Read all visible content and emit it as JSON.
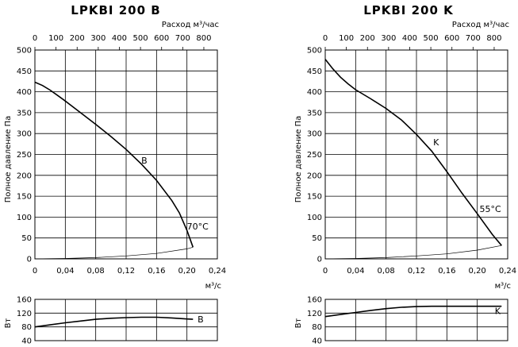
{
  "chart_data": [
    {
      "type": "line",
      "title": "LPKBI 200 B",
      "x_label": "м³/с",
      "x_ticks": [
        "0",
        "0,04",
        "0,08",
        "0,12",
        "0,16",
        "0,20",
        "0,24"
      ],
      "xlim": [
        0,
        0.24
      ],
      "top_label": "Расход м³/час",
      "top_ticks": [
        "0",
        "100",
        "200",
        "300",
        "400",
        "500",
        "600",
        "700",
        "800"
      ],
      "top_lim": [
        0,
        864
      ],
      "y_label": "Полное давление Па",
      "y_ticks": [
        "0",
        "50",
        "100",
        "150",
        "200",
        "250",
        "300",
        "350",
        "400",
        "450",
        "500"
      ],
      "ylim": [
        0,
        500
      ],
      "grid": true,
      "series": [
        {
          "name": "B",
          "x": [
            0,
            0.01,
            0.02,
            0.03,
            0.04,
            0.06,
            0.08,
            0.1,
            0.12,
            0.14,
            0.16,
            0.18,
            0.19,
            0.2,
            0.208
          ],
          "y": [
            423,
            415,
            404,
            391,
            378,
            350,
            322,
            293,
            262,
            227,
            188,
            140,
            110,
            68,
            28
          ]
        },
        {
          "name": "",
          "x": [
            0,
            0.04,
            0.08,
            0.12,
            0.16,
            0.2,
            0.208
          ],
          "y": [
            0,
            1,
            3,
            7,
            13,
            24,
            28
          ]
        }
      ],
      "annotations": [
        {
          "text": "B",
          "x": 0.14,
          "y": 228
        },
        {
          "text": "70°C",
          "x": 0.2,
          "y": 70
        }
      ],
      "power_chart": {
        "y_label": "Вт",
        "y_ticks": [
          "40",
          "80",
          "120",
          "160"
        ],
        "ylim": [
          40,
          160
        ],
        "series": [
          {
            "name": "B",
            "x": [
              0,
              0.02,
              0.04,
              0.06,
              0.08,
              0.1,
              0.12,
              0.14,
              0.16,
              0.18,
              0.2,
              0.208
            ],
            "y": [
              80,
              86,
              92,
              97,
              102,
              105,
              107,
              108,
              108,
              106,
              103,
              102
            ]
          }
        ],
        "annotations": [
          {
            "text": "B",
            "x": 0.214,
            "y": 102
          }
        ]
      }
    },
    {
      "type": "line",
      "title": "LPKBI 200 K",
      "x_label": "м³/с",
      "x_ticks": [
        "0",
        "0,04",
        "0,08",
        "0,12",
        "0,16",
        "0,20",
        "0,24"
      ],
      "xlim": [
        0,
        0.24
      ],
      "top_label": "Расход м³/час",
      "top_ticks": [
        "0",
        "100",
        "200",
        "300",
        "400",
        "500",
        "600",
        "700",
        "800"
      ],
      "top_lim": [
        0,
        864
      ],
      "y_label": "Полное давление Па",
      "y_ticks": [
        "0",
        "50",
        "100",
        "150",
        "200",
        "250",
        "300",
        "350",
        "400",
        "450",
        "500"
      ],
      "ylim": [
        0,
        500
      ],
      "grid": true,
      "series": [
        {
          "name": "K",
          "x": [
            0,
            0.01,
            0.02,
            0.03,
            0.04,
            0.06,
            0.08,
            0.1,
            0.12,
            0.14,
            0.16,
            0.18,
            0.2,
            0.22,
            0.232
          ],
          "y": [
            478,
            455,
            435,
            419,
            405,
            383,
            360,
            333,
            298,
            258,
            209,
            157,
            108,
            58,
            32
          ]
        },
        {
          "name": "",
          "x": [
            0,
            0.04,
            0.08,
            0.12,
            0.16,
            0.2,
            0.232
          ],
          "y": [
            0,
            1,
            3,
            7,
            12,
            21,
            32
          ]
        }
      ],
      "annotations": [
        {
          "text": "K",
          "x": 0.142,
          "y": 272
        },
        {
          "text": "55°C",
          "x": 0.203,
          "y": 112
        }
      ],
      "power_chart": {
        "y_label": "Вт",
        "y_ticks": [
          "40",
          "80",
          "120",
          "160"
        ],
        "ylim": [
          40,
          160
        ],
        "series": [
          {
            "name": "K",
            "x": [
              0,
              0.02,
              0.04,
              0.06,
              0.08,
              0.1,
              0.12,
              0.14,
              0.16,
              0.18,
              0.2,
              0.22,
              0.232
            ],
            "y": [
              110,
              116,
              122,
              128,
              133,
              137,
              139,
              140,
              140,
              140,
              140,
              140,
              140
            ]
          }
        ],
        "annotations": [
          {
            "text": "K",
            "x": 0.223,
            "y": 126
          }
        ]
      }
    }
  ]
}
